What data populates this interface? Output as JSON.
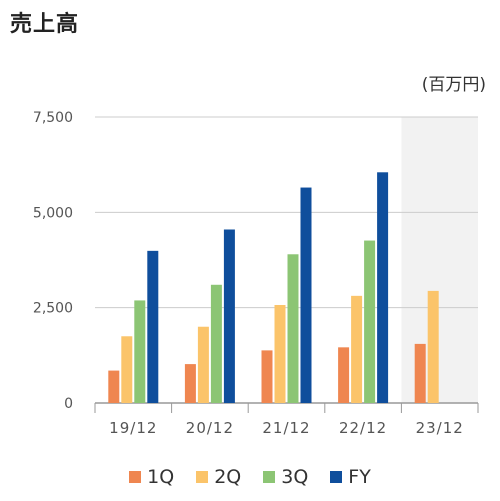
{
  "title": "売上高",
  "unit_label": "(百万円)",
  "colors": {
    "1Q": "#ef8650",
    "2Q": "#fbc46a",
    "3Q": "#8cc574",
    "FY": "#0f4e9c",
    "forecast_bg": "#f2f2f2",
    "axis": "#999999",
    "grid": "#cccccc",
    "tick_text": "#555555"
  },
  "chart_data": {
    "type": "bar",
    "categories": [
      "19/12",
      "20/12",
      "21/12",
      "22/12",
      "23/12"
    ],
    "series": [
      {
        "name": "1Q",
        "values": [
          850,
          1020,
          1380,
          1460,
          1550
        ]
      },
      {
        "name": "2Q",
        "values": [
          1750,
          2000,
          2570,
          2810,
          2940
        ]
      },
      {
        "name": "3Q",
        "values": [
          2690,
          3100,
          3900,
          4260,
          null
        ]
      },
      {
        "name": "FY",
        "values": [
          3990,
          4550,
          5650,
          6050,
          null
        ]
      }
    ],
    "ylim": [
      0,
      7500
    ],
    "yticks": [
      0,
      2500,
      5000,
      7500
    ],
    "ytick_labels": [
      "0",
      "2,500",
      "5,000",
      "7,500"
    ],
    "highlighted_category": "23/12",
    "grid": true,
    "legend_position": "bottom"
  }
}
